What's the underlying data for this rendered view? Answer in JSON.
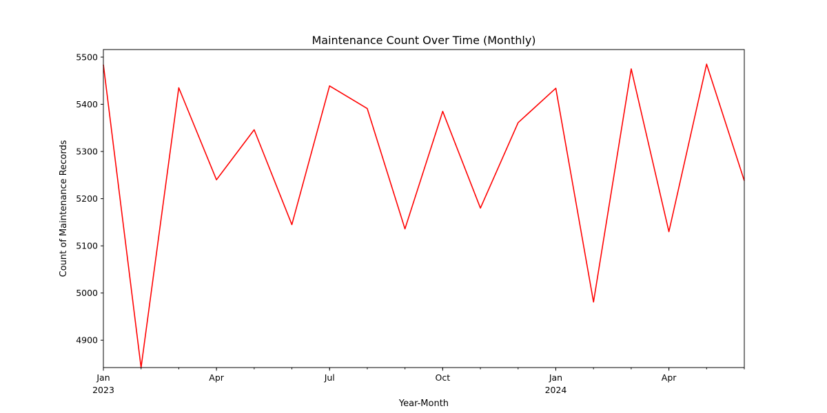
{
  "chart_data": {
    "type": "line",
    "title": "Maintenance Count Over Time (Monthly)",
    "xlabel": "Year-Month",
    "ylabel": "Count of Maintenance Records",
    "x": [
      "2023-01",
      "2023-02",
      "2023-03",
      "2023-04",
      "2023-05",
      "2023-06",
      "2023-07",
      "2023-08",
      "2023-09",
      "2023-10",
      "2023-11",
      "2023-12",
      "2024-01",
      "2024-02",
      "2024-03",
      "2024-04",
      "2024-05",
      "2024-06"
    ],
    "series": [
      {
        "values": [
          5484,
          4842,
          5435,
          5240,
          5346,
          5145,
          5439,
          5391,
          5136,
          5385,
          5180,
          5361,
          5434,
          4981,
          5475,
          5130,
          5485,
          5238
        ],
        "color": "#ff0000"
      }
    ],
    "ylim": [
      4842,
      5516
    ],
    "y_ticks": [
      4900,
      5000,
      5100,
      5200,
      5300,
      5400,
      5500
    ],
    "x_ticks": [
      {
        "x": "2023-01",
        "label": "Jan",
        "sublabel": "2023"
      },
      {
        "x": "2023-04",
        "label": "Apr",
        "sublabel": ""
      },
      {
        "x": "2023-07",
        "label": "Jul",
        "sublabel": ""
      },
      {
        "x": "2023-10",
        "label": "Oct",
        "sublabel": ""
      },
      {
        "x": "2024-01",
        "label": "Jan",
        "sublabel": "2024"
      },
      {
        "x": "2024-04",
        "label": "Apr",
        "sublabel": ""
      }
    ],
    "grid": false,
    "legend": "none"
  }
}
